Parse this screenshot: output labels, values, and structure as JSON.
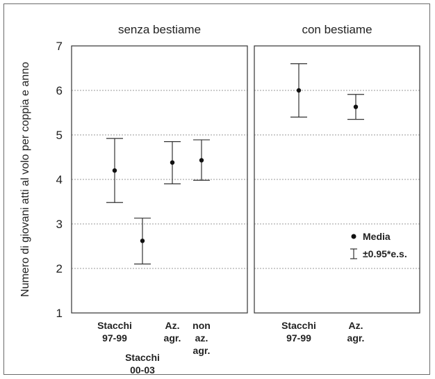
{
  "chart_data": {
    "type": "scatter",
    "subtype": "error-bar (mean ± 0.95*s.e.)",
    "ylabel": "Numero di giovani atti al volo per coppia e anno",
    "ylim": [
      1,
      7
    ],
    "yticks": [
      1,
      2,
      3,
      4,
      5,
      6,
      7
    ],
    "grid": true,
    "legend": {
      "position": "right (inside panel 'con bestiame')",
      "mean_label": "Media",
      "error_label": "±0.95*e.s."
    },
    "panels": [
      {
        "title": "senza bestiame",
        "points": [
          {
            "category": [
              "Stacchi",
              "97-99"
            ],
            "mean": 4.2,
            "low": 3.48,
            "high": 4.92
          },
          {
            "category": [
              "Stacchi",
              "00-03"
            ],
            "mean": 2.62,
            "low": 2.1,
            "high": 3.13
          },
          {
            "category": [
              "Az.",
              "agr."
            ],
            "mean": 4.38,
            "low": 3.9,
            "high": 4.85
          },
          {
            "category": [
              "non",
              "az.",
              "agr."
            ],
            "mean": 4.43,
            "low": 3.98,
            "high": 4.89
          }
        ]
      },
      {
        "title": "con bestiame",
        "points": [
          {
            "category": [
              "Stacchi",
              "97-99"
            ],
            "mean": 6.0,
            "low": 5.4,
            "high": 6.6
          },
          {
            "category": [
              "Az.",
              "agr."
            ],
            "mean": 5.63,
            "low": 5.35,
            "high": 5.91
          }
        ]
      }
    ]
  }
}
